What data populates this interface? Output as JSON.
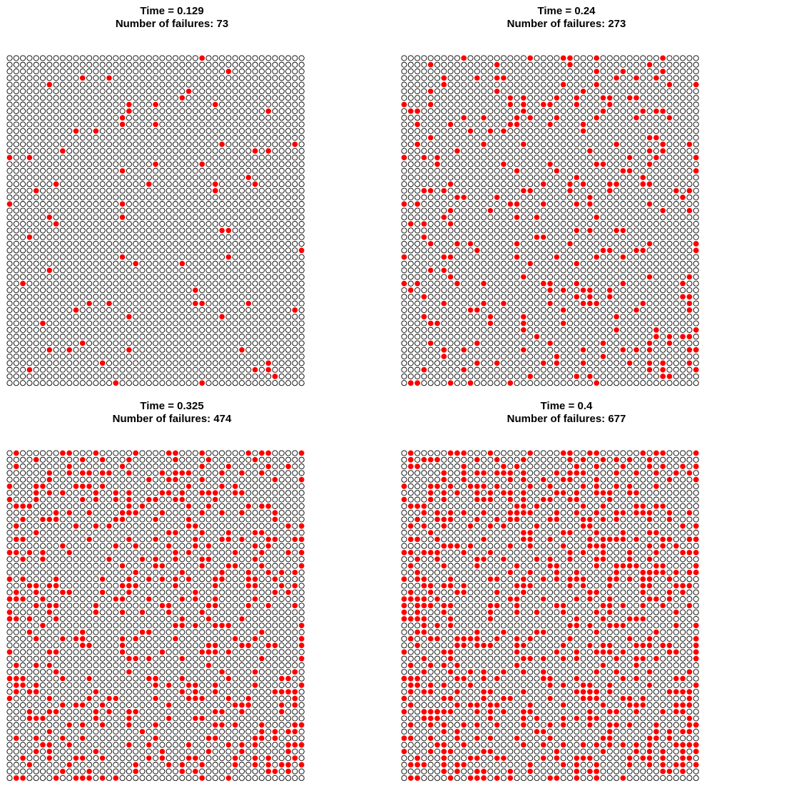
{
  "chart_data": [
    {
      "type": "scatter",
      "title_line1": "Time = 0.129",
      "title_line2": "Number of failures: 73",
      "time": 0.129,
      "failures": 73,
      "grid_size": [
        50,
        45
      ],
      "failed_color": "#ff0000",
      "ok_color": "#000000"
    },
    {
      "type": "scatter",
      "title_line1": "Time = 0.24",
      "title_line2": "Number of failures: 273",
      "time": 0.24,
      "failures": 273,
      "grid_size": [
        50,
        45
      ],
      "failed_color": "#ff0000",
      "ok_color": "#000000"
    },
    {
      "type": "scatter",
      "title_line1": "Time = 0.325",
      "title_line2": "Number of failures: 474",
      "time": 0.325,
      "failures": 474,
      "grid_size": [
        50,
        45
      ],
      "failed_color": "#ff0000",
      "ok_color": "#000000"
    },
    {
      "type": "scatter",
      "title_line1": "Time = 0.4",
      "title_line2": "Number of failures: 677",
      "time": 0.4,
      "failures": 677,
      "grid_size": [
        50,
        45
      ],
      "failed_color": "#ff0000",
      "ok_color": "#000000"
    }
  ]
}
